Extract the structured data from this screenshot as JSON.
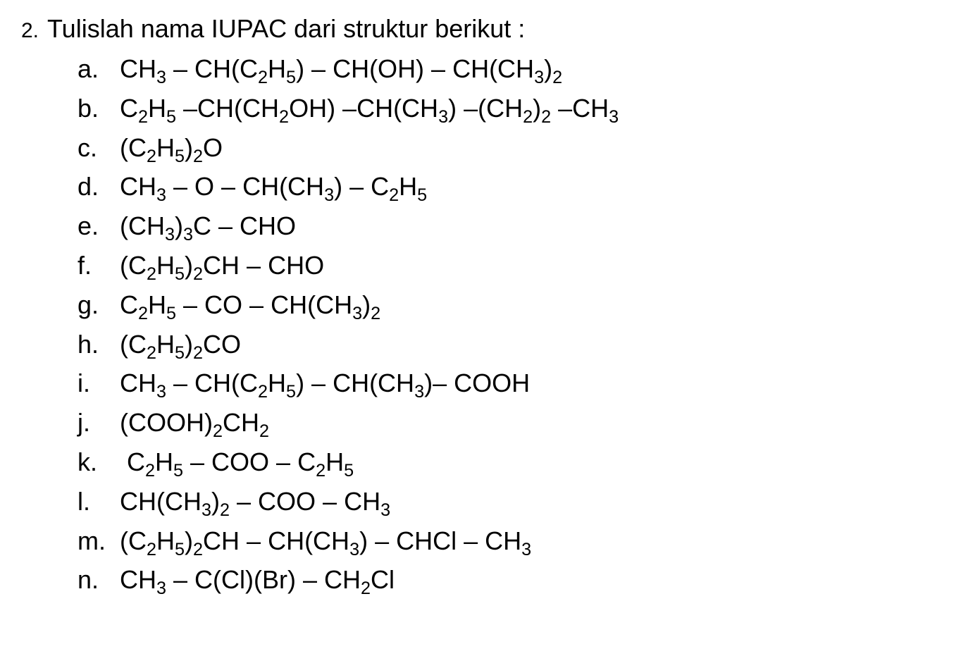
{
  "question": {
    "number": "2.",
    "text": "Tulislah nama IUPAC dari struktur berikut :"
  },
  "items": [
    {
      "letter": "a.",
      "formula_html": "CH<sub>3</sub> – CH(C<sub>2</sub>H<sub>5</sub>) – CH(OH) – CH(CH<sub>3</sub>)<sub>2</sub>"
    },
    {
      "letter": "b.",
      "formula_html": "C<sub>2</sub>H<sub>5</sub> –CH(CH<sub>2</sub>OH) –CH(CH<sub>3</sub>) –(CH<sub>2</sub>)<sub>2</sub> –CH<sub>3</sub>"
    },
    {
      "letter": "c.",
      "formula_html": "(C<sub>2</sub>H<sub>5</sub>)<sub>2</sub>O"
    },
    {
      "letter": "d.",
      "formula_html": "CH<sub>3</sub> – O – CH(CH<sub>3</sub>) – C<sub>2</sub>H<sub>5</sub>"
    },
    {
      "letter": "e.",
      "formula_html": "(CH<sub>3</sub>)<sub>3</sub>C – CHO"
    },
    {
      "letter": "f.",
      "formula_html": "(C<sub>2</sub>H<sub>5</sub>)<sub>2</sub>CH – CHO"
    },
    {
      "letter": "g.",
      "formula_html": "C<sub>2</sub>H<sub>5</sub> – CO – CH(CH<sub>3</sub>)<sub>2</sub>"
    },
    {
      "letter": "h.",
      "formula_html": "(C<sub>2</sub>H<sub>5</sub>)<sub>2</sub>CO"
    },
    {
      "letter": "i.",
      "formula_html": "CH<sub>3</sub> – CH(C<sub>2</sub>H<sub>5</sub>) – CH(CH<sub>3</sub>)– COOH"
    },
    {
      "letter": "j.",
      "formula_html": "(COOH)<sub>2</sub>CH<sub>2</sub>"
    },
    {
      "letter": "k.",
      "formula_html": "&nbsp;C<sub>2</sub>H<sub>5</sub> – COO – C<sub>2</sub>H<sub>5</sub>"
    },
    {
      "letter": "l.",
      "formula_html": "CH(CH<sub>3</sub>)<sub>2</sub> – COO – CH<sub>3</sub>"
    },
    {
      "letter": "m.",
      "formula_html": "(C<sub>2</sub>H<sub>5</sub>)<sub>2</sub>CH – CH(CH<sub>3</sub>) – CHCl – CH<sub>3</sub>"
    },
    {
      "letter": "n.",
      "formula_html": "CH<sub>3</sub> – C(Cl)(Br) – CH<sub>2</sub>Cl"
    }
  ],
  "styling": {
    "background_color": "#ffffff",
    "text_color": "#000000",
    "font_family": "Arial, Helvetica, sans-serif",
    "question_number_fontsize": 30,
    "question_text_fontsize": 36,
    "item_fontsize": 36,
    "line_height": 1.55,
    "letter_column_width": 60,
    "items_indent": 80
  }
}
